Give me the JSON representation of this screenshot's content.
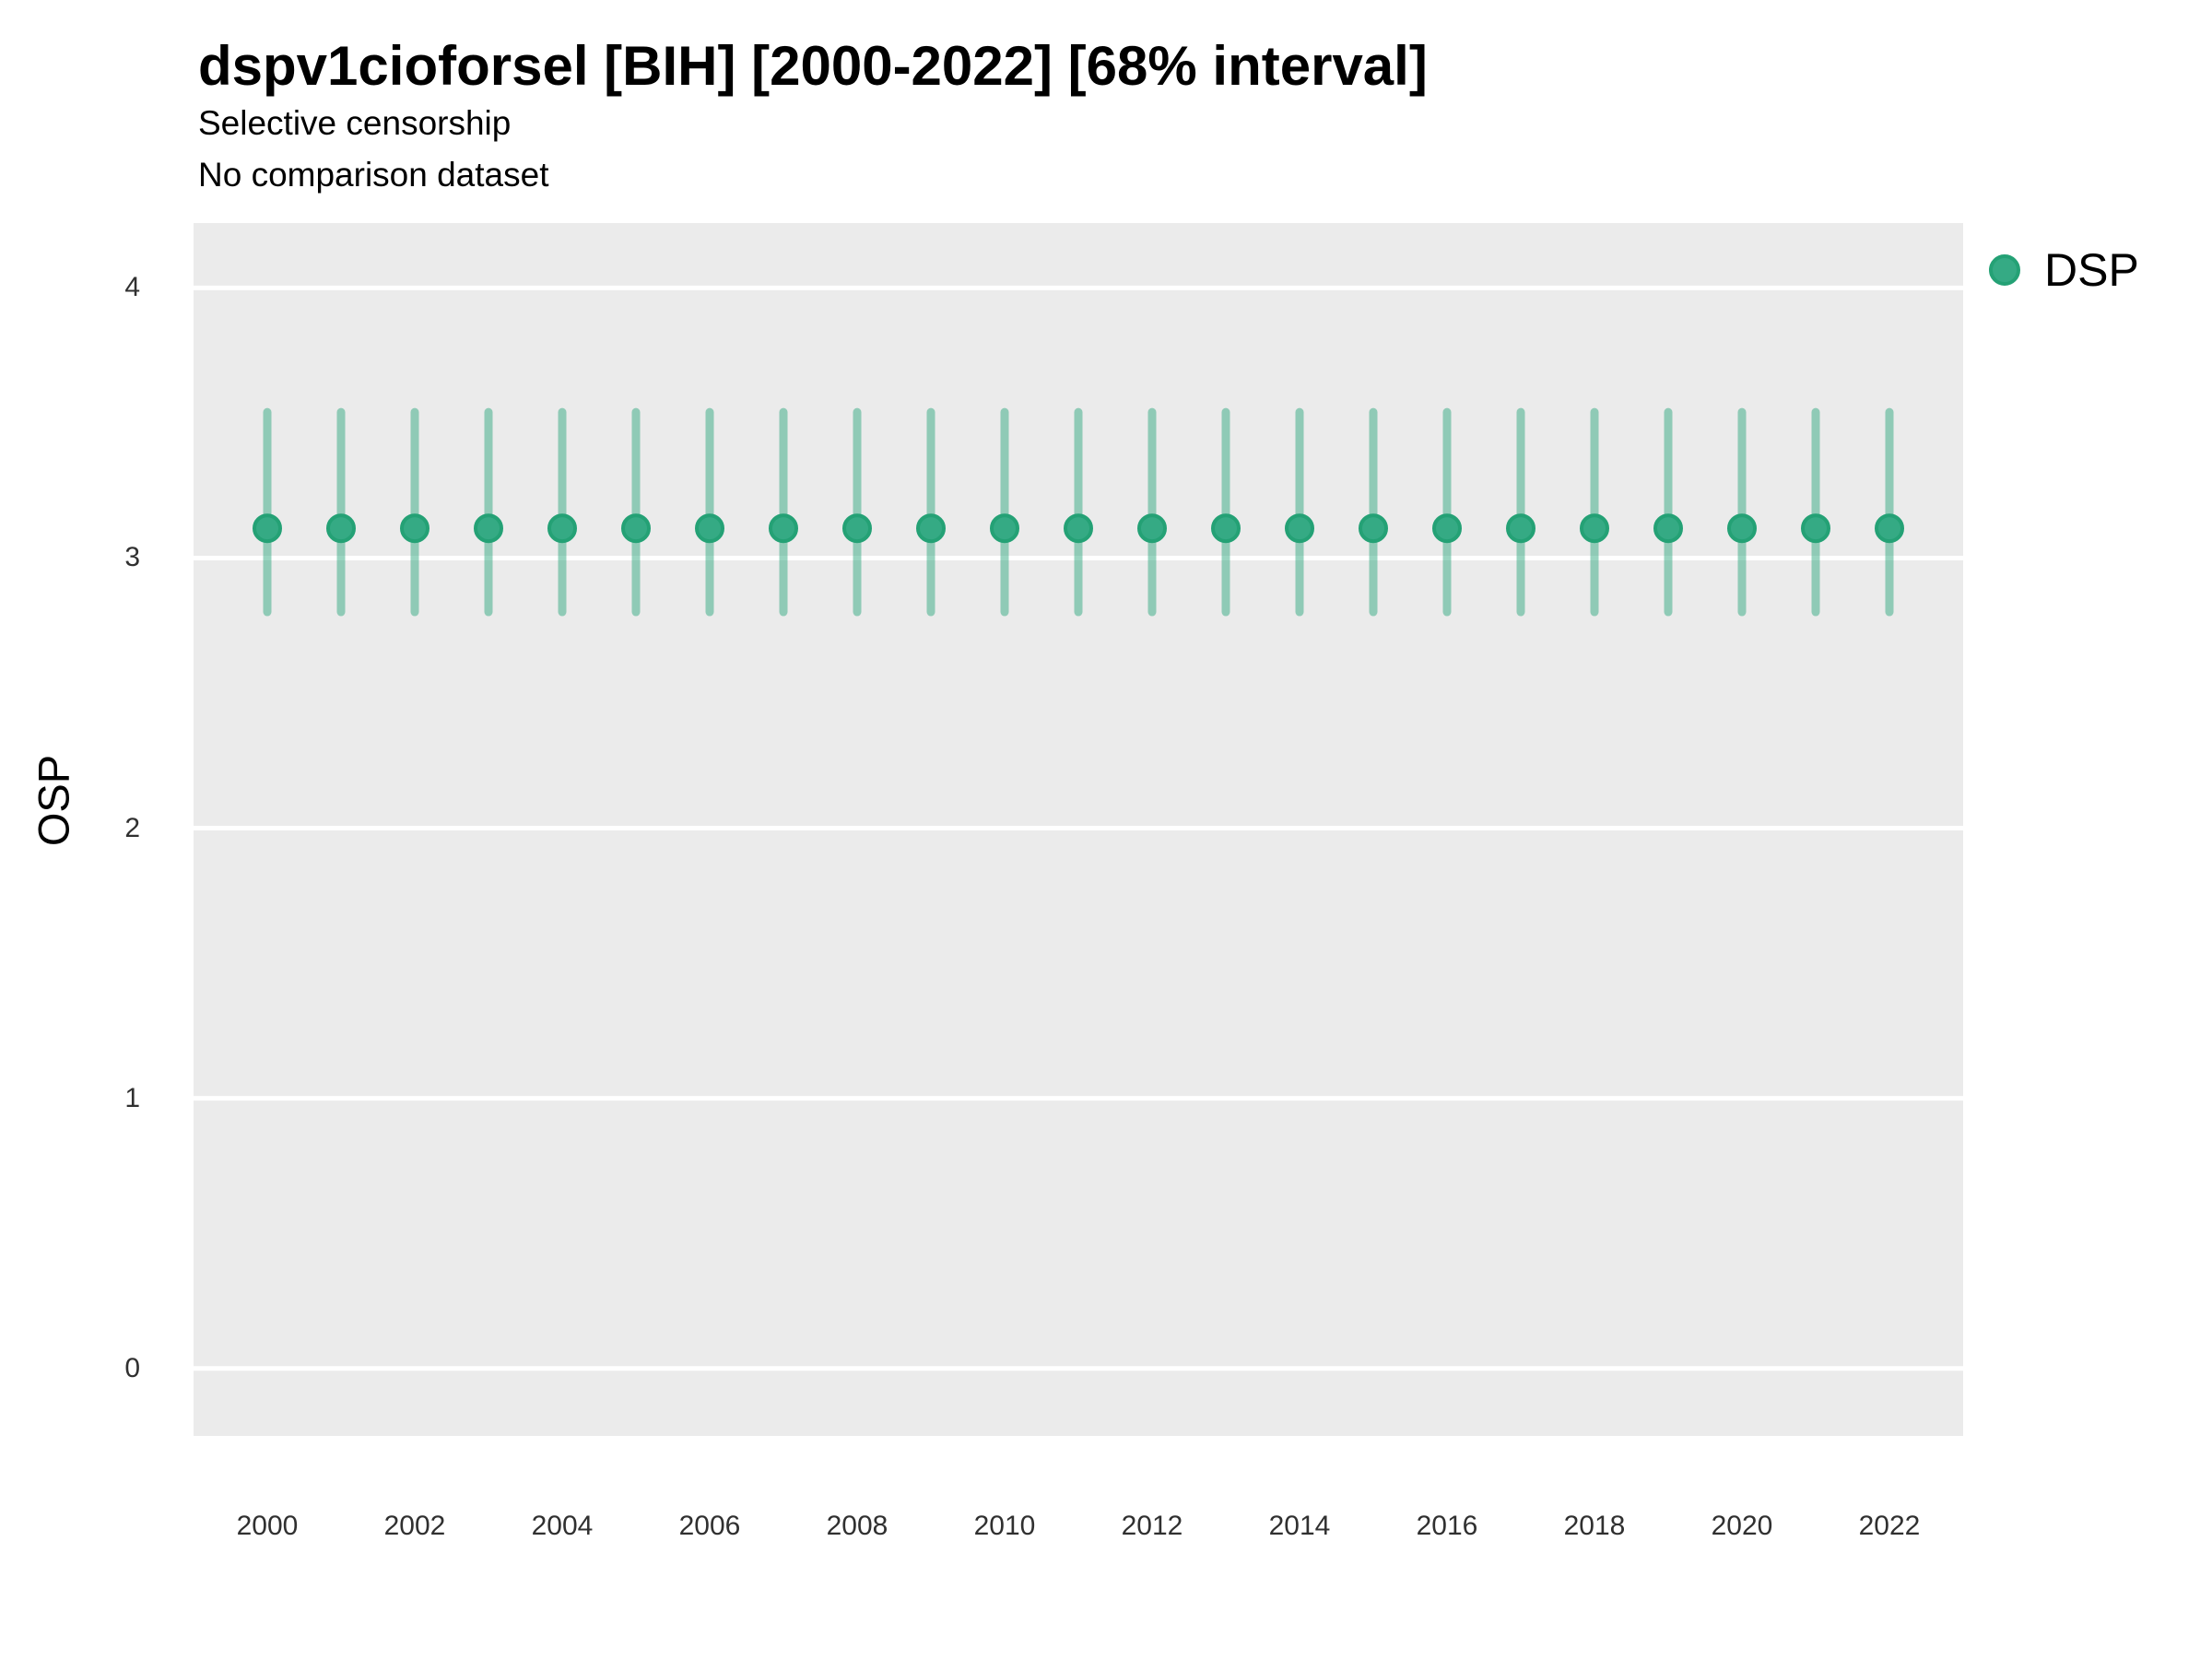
{
  "header": {
    "title": "dspv1cioforsel [BIH] [2000-2022] [68% interval]",
    "subtitle": [
      "Selective censorship",
      "No comparison dataset"
    ]
  },
  "chart_data": {
    "type": "scatter",
    "title": "dspv1cioforsel [BIH] [2000-2022] [68% interval]",
    "subtitle": [
      "Selective censorship",
      "No comparison dataset"
    ],
    "xlabel": "",
    "ylabel": "OSP",
    "interval_label": "68% interval",
    "legend_position": "right",
    "grid": "horizontal major gridlines, white on gray panel",
    "xlim": [
      1999,
      2023
    ],
    "ylim": [
      -0.25,
      4.24
    ],
    "x_ticks": [
      2000,
      2002,
      2004,
      2006,
      2008,
      2010,
      2012,
      2014,
      2016,
      2018,
      2020,
      2022
    ],
    "y_ticks": [
      0,
      1,
      2,
      3,
      4
    ],
    "series": [
      {
        "name": "DSP",
        "x": [
          2000,
          2001,
          2002,
          2003,
          2004,
          2005,
          2006,
          2007,
          2008,
          2009,
          2010,
          2011,
          2012,
          2013,
          2014,
          2015,
          2016,
          2017,
          2018,
          2019,
          2020,
          2021,
          2022
        ],
        "y": [
          3.11,
          3.11,
          3.11,
          3.11,
          3.11,
          3.11,
          3.11,
          3.11,
          3.11,
          3.11,
          3.11,
          3.11,
          3.11,
          3.11,
          3.11,
          3.11,
          3.11,
          3.11,
          3.11,
          3.11,
          3.11,
          3.11,
          3.11
        ],
        "y_low": [
          2.8,
          2.8,
          2.8,
          2.8,
          2.8,
          2.8,
          2.8,
          2.8,
          2.8,
          2.8,
          2.8,
          2.8,
          2.8,
          2.8,
          2.8,
          2.8,
          2.8,
          2.8,
          2.8,
          2.8,
          2.8,
          2.8,
          2.8
        ],
        "y_high": [
          3.54,
          3.54,
          3.54,
          3.54,
          3.54,
          3.54,
          3.54,
          3.54,
          3.54,
          3.54,
          3.54,
          3.54,
          3.54,
          3.54,
          3.54,
          3.54,
          3.54,
          3.54,
          3.54,
          3.54,
          3.54,
          3.54,
          3.54
        ]
      }
    ],
    "colors": {
      "point_fill": "#35AA84",
      "point_stroke": "#24A175",
      "interval": "rgba(52,169,130,0.5)",
      "panel_bg": "#EBEBEB",
      "gridline": "#FFFFFF",
      "tick_text": "#303030",
      "text": "#000000"
    }
  }
}
